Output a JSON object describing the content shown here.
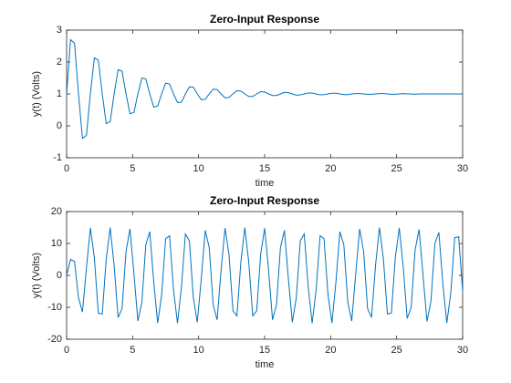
{
  "chart_data": [
    {
      "type": "line",
      "title": "Zero-Input Response",
      "xlabel": "time",
      "ylabel": "y(t) (Volts)",
      "color": "#0072bd",
      "xlim": [
        0,
        30
      ],
      "xticks": [
        0,
        5,
        10,
        15,
        20,
        25,
        30
      ],
      "ylim": [
        -1,
        3
      ],
      "yticks": [
        -1,
        0,
        1,
        2,
        3
      ],
      "x": [
        0,
        0.3,
        0.6,
        0.9,
        1.2,
        1.5,
        1.8,
        2.1,
        2.4,
        2.7,
        3,
        3.3,
        3.6,
        3.9,
        4.2,
        4.5,
        4.8,
        5.1,
        5.4,
        5.7,
        6,
        6.3,
        6.6,
        6.9,
        7.2,
        7.5,
        7.8,
        8.1,
        8.4,
        8.7,
        9,
        9.3,
        9.6,
        9.9,
        10.2,
        10.5,
        10.8,
        11.1,
        11.4,
        11.7,
        12,
        12.3,
        12.6,
        12.9,
        13.2,
        13.5,
        13.8,
        14.1,
        14.4,
        14.7,
        15,
        15.3,
        15.6,
        15.9,
        16.2,
        16.5,
        16.8,
        17.1,
        17.4,
        17.7,
        18,
        18.3,
        18.6,
        18.9,
        19.2,
        19.5,
        19.8,
        20.1,
        20.4,
        20.7,
        21,
        21.3,
        21.6,
        21.9,
        22.2,
        22.5,
        22.8,
        23.1,
        23.4,
        23.7,
        24,
        24.3,
        24.6,
        24.9,
        25.2,
        25.5,
        25.8,
        26.1,
        26.4,
        26.7,
        27,
        27.3,
        27.6,
        27.9,
        28.2,
        28.5,
        28.8,
        29.1,
        29.4,
        29.7,
        30
      ],
      "values": [
        1,
        2.7,
        2.59,
        1,
        -0.39,
        -0.3,
        1,
        2.13,
        2.06,
        1,
        0.07,
        0.13,
        1,
        1.76,
        1.71,
        1,
        0.38,
        0.42,
        1,
        1.5,
        1.47,
        1,
        0.59,
        0.62,
        1,
        1.34,
        1.31,
        1,
        0.73,
        0.74,
        1,
        1.22,
        1.21,
        1,
        0.82,
        0.83,
        1,
        1.15,
        1.14,
        1,
        0.88,
        0.89,
        1,
        1.1,
        1.09,
        1,
        0.92,
        0.92,
        1,
        1.07,
        1.06,
        1,
        0.95,
        0.95,
        1,
        1.05,
        1.04,
        1,
        0.96,
        0.97,
        1,
        1.03,
        1.03,
        1,
        0.97,
        0.98,
        1,
        1.02,
        1.02,
        1,
        0.98,
        0.98,
        1,
        1.01,
        1.01,
        1,
        0.99,
        0.99,
        1,
        1.01,
        1.01,
        1,
        0.99,
        0.99,
        1,
        1.01,
        1,
        1,
        0.99,
        1,
        1,
        1,
        1,
        1,
        1,
        1,
        1,
        1,
        1,
        1,
        1
      ]
    },
    {
      "type": "line",
      "title": "Zero-Input Response",
      "xlabel": "time",
      "ylabel": "y(t) (Volts)",
      "color": "#0072bd",
      "xlim": [
        0,
        30
      ],
      "xticks": [
        0,
        5,
        10,
        15,
        20,
        25,
        30
      ],
      "ylim": [
        -20,
        20
      ],
      "yticks": [
        -20,
        -10,
        0,
        10,
        20
      ],
      "x": [
        0,
        0.3,
        0.6,
        0.9,
        1.2,
        1.5,
        1.8,
        2.1,
        2.4,
        2.7,
        3,
        3.3,
        3.6,
        3.9,
        4.2,
        4.5,
        4.8,
        5.1,
        5.4,
        5.7,
        6,
        6.3,
        6.6,
        6.9,
        7.2,
        7.5,
        7.8,
        8.1,
        8.4,
        8.7,
        9,
        9.3,
        9.6,
        9.9,
        10.2,
        10.5,
        10.8,
        11.1,
        11.4,
        11.7,
        12,
        12.3,
        12.6,
        12.9,
        13.2,
        13.5,
        13.8,
        14.1,
        14.4,
        14.7,
        15,
        15.3,
        15.6,
        15.9,
        16.2,
        16.5,
        16.8,
        17.1,
        17.4,
        17.7,
        18,
        18.3,
        18.6,
        18.9,
        19.2,
        19.5,
        19.8,
        20.1,
        20.4,
        20.7,
        21,
        21.3,
        21.6,
        21.9,
        22.2,
        22.5,
        22.8,
        23.1,
        23.4,
        23.7,
        24,
        24.3,
        24.6,
        24.9,
        25.2,
        25.5,
        25.8,
        26.1,
        26.4,
        26.7,
        27,
        27.3,
        27.6,
        27.9,
        28.2,
        28.5,
        28.8,
        29.1,
        29.4,
        29.7,
        30
      ],
      "values": [
        0,
        5,
        4.4,
        -7,
        -11.5,
        2.3,
        14.9,
        5.6,
        -11.8,
        -12.1,
        5.1,
        15,
        3.1,
        -13.2,
        -10.4,
        7.5,
        14.6,
        0.5,
        -14.3,
        -8.4,
        9.6,
        13.7,
        -2.1,
        -14.9,
        -6.1,
        11.5,
        12.4,
        -4.6,
        -15,
        -3.6,
        13,
        10.8,
        -7,
        -14.7,
        -1.1,
        14.1,
        8.8,
        -9.2,
        -13.9,
        1.6,
        14.8,
        6.6,
        -11.1,
        -12.7,
        4.1,
        15,
        4.1,
        -12.7,
        -11.1,
        6.6,
        14.8,
        1.6,
        -13.9,
        -9.2,
        8.8,
        14.1,
        -1.1,
        -14.7,
        -7,
        10.8,
        13,
        -3.6,
        -15,
        -4.6,
        12.4,
        11.5,
        -6.1,
        -14.9,
        -2.1,
        13.7,
        9.6,
        -8.4,
        -14.3,
        0.5,
        14.6,
        7.5,
        -10.4,
        -13.2,
        3.1,
        15,
        5.1,
        -12.1,
        -11.8,
        5.6,
        14.9,
        2.6,
        -13.5,
        -10,
        8,
        14.4,
        0,
        -14.4,
        -8,
        10,
        13.5,
        -2.6,
        -14.9,
        -5.6,
        11.8,
        12.1,
        -5.1
      ]
    }
  ]
}
